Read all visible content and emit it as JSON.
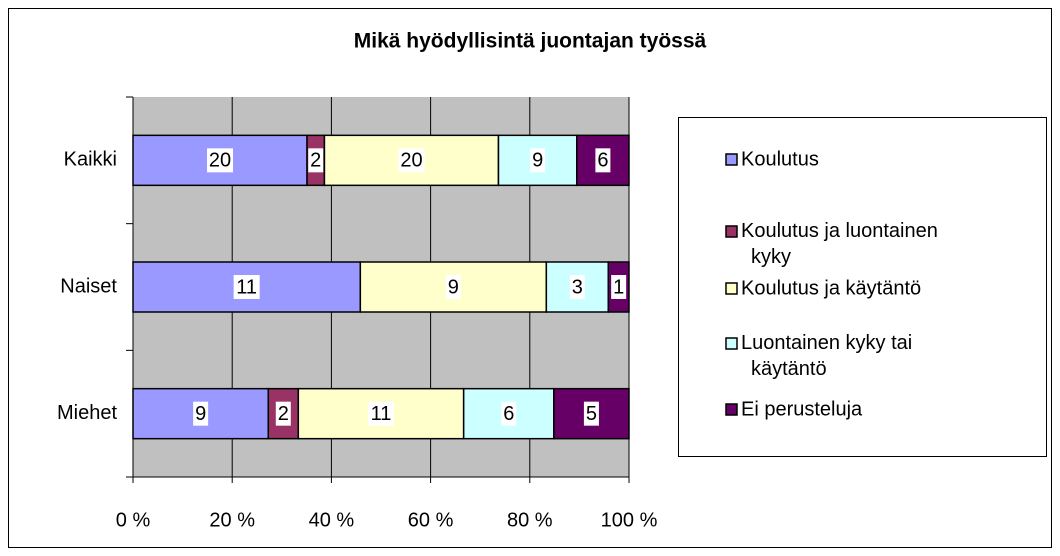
{
  "chart_data": {
    "type": "bar",
    "orientation": "horizontal",
    "stacked": "percent",
    "title": "Mikä hyödyllisintä juontajan työssä",
    "categories": [
      "Kaikki",
      "Naiset",
      "Miehet"
    ],
    "series": [
      {
        "name": "Koulutus",
        "color": "#9999ff",
        "values": [
          20,
          11,
          9
        ]
      },
      {
        "name": "Koulutus ja luontainen kyky",
        "color": "#993366",
        "values": [
          2,
          0,
          2
        ]
      },
      {
        "name": "Koulutus ja käytäntö",
        "color": "#ffffcc",
        "values": [
          20,
          9,
          11
        ]
      },
      {
        "name": "Luontainen kyky tai käytäntö",
        "color": "#ccffff",
        "values": [
          9,
          3,
          6
        ]
      },
      {
        "name": "Ei perusteluja",
        "color": "#660066",
        "values": [
          6,
          1,
          5
        ]
      }
    ],
    "xlim": [
      0,
      100
    ],
    "xticks": [
      {
        "value": 0,
        "label": "0 %"
      },
      {
        "value": 20,
        "label": "20 %"
      },
      {
        "value": 40,
        "label": "40 %"
      },
      {
        "value": 60,
        "label": "60 %"
      },
      {
        "value": 80,
        "label": "80 %"
      },
      {
        "value": 100,
        "label": "100 %"
      }
    ],
    "grid": true,
    "legend": "right"
  }
}
